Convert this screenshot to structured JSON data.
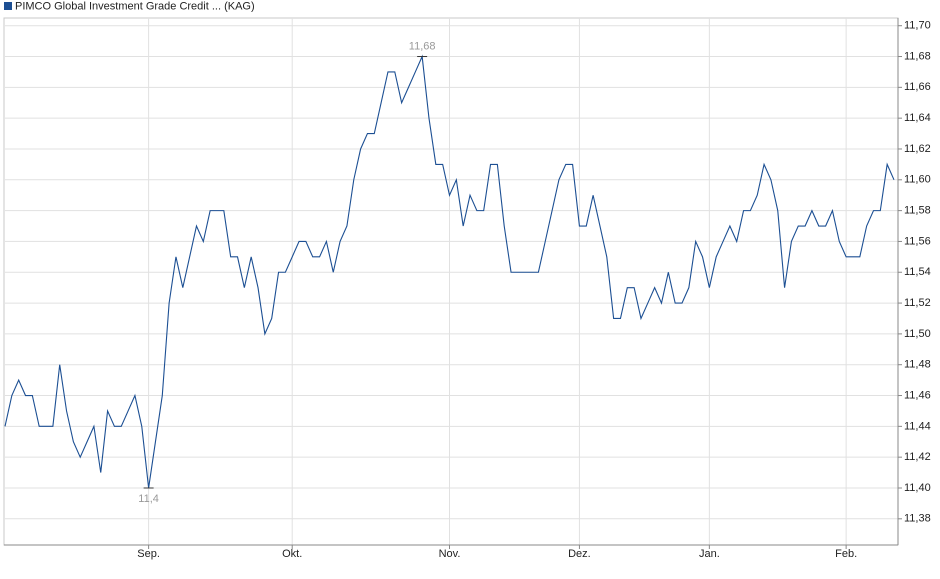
{
  "chart_data": {
    "type": "line",
    "series": [
      {
        "name": "PIMCO Global Investment Grade Credit ... (KAG)",
        "color": "#1c4f93",
        "values": [
          11.44,
          11.46,
          11.47,
          11.46,
          11.46,
          11.44,
          11.44,
          11.44,
          11.48,
          11.45,
          11.43,
          11.42,
          11.43,
          11.44,
          11.41,
          11.45,
          11.44,
          11.44,
          11.45,
          11.46,
          11.44,
          11.4,
          11.43,
          11.46,
          11.52,
          11.55,
          11.53,
          11.55,
          11.57,
          11.56,
          11.58,
          11.58,
          11.58,
          11.55,
          11.55,
          11.53,
          11.55,
          11.53,
          11.5,
          11.51,
          11.54,
          11.54,
          11.55,
          11.56,
          11.56,
          11.55,
          11.55,
          11.56,
          11.54,
          11.56,
          11.57,
          11.6,
          11.62,
          11.63,
          11.63,
          11.65,
          11.67,
          11.67,
          11.65,
          11.66,
          11.67,
          11.68,
          11.64,
          11.61,
          11.61,
          11.59,
          11.6,
          11.57,
          11.59,
          11.58,
          11.58,
          11.61,
          11.61,
          11.57,
          11.54,
          11.54,
          11.54,
          11.54,
          11.54,
          11.56,
          11.58,
          11.6,
          11.61,
          11.61,
          11.57,
          11.57,
          11.59,
          11.57,
          11.55,
          11.51,
          11.51,
          11.53,
          11.53,
          11.51,
          11.52,
          11.53,
          11.52,
          11.54,
          11.52,
          11.52,
          11.53,
          11.56,
          11.55,
          11.53,
          11.55,
          11.56,
          11.57,
          11.56,
          11.58,
          11.58,
          11.59,
          11.61,
          11.6,
          11.58,
          11.53,
          11.56,
          11.57,
          11.57,
          11.58,
          11.57,
          11.57,
          11.58,
          11.56,
          11.55,
          11.55,
          11.55,
          11.57,
          11.58,
          11.58,
          11.61,
          11.6
        ],
        "value_labels": [
          null,
          null,
          null,
          null,
          null,
          null,
          null,
          null,
          null,
          null,
          null,
          null,
          null,
          null,
          null,
          null,
          null,
          null,
          null,
          null,
          null,
          "11,4",
          null,
          null,
          null,
          null,
          null,
          null,
          null,
          null,
          null,
          null,
          null,
          null,
          null,
          null,
          null,
          null,
          null,
          null,
          null,
          null,
          null,
          null,
          null,
          null,
          null,
          null,
          null,
          null,
          null,
          null,
          null,
          null,
          null,
          null,
          null,
          null,
          null,
          null,
          null,
          "11,68",
          null,
          null,
          null,
          null,
          null,
          null,
          null,
          null,
          null,
          null,
          null,
          null,
          null,
          null,
          null,
          null,
          null,
          null,
          null,
          null,
          null,
          null,
          null,
          null,
          null,
          null,
          null,
          null,
          null,
          null,
          null,
          null,
          null,
          null,
          null,
          null,
          null,
          null,
          null,
          null,
          null,
          null,
          null,
          null,
          null,
          null,
          null,
          null,
          null,
          null,
          null,
          null,
          null,
          null,
          null,
          null,
          null,
          null,
          null,
          null,
          null,
          null,
          null,
          null,
          null,
          null,
          null,
          null,
          null
        ]
      }
    ],
    "xlim": [
      0,
      130
    ],
    "xticks": [
      {
        "value": 21,
        "label": "Sep."
      },
      {
        "value": 42,
        "label": "Okt."
      },
      {
        "value": 65,
        "label": "Nov."
      },
      {
        "value": 84,
        "label": "Dez."
      },
      {
        "value": 103,
        "label": "Jan."
      },
      {
        "value": 123,
        "label": "Feb."
      }
    ],
    "ylim": [
      11.363,
      11.705
    ],
    "yticks": [
      {
        "value": 11.38,
        "label": "11,38"
      },
      {
        "value": 11.4,
        "label": "11,40"
      },
      {
        "value": 11.42,
        "label": "11,42"
      },
      {
        "value": 11.44,
        "label": "11,44"
      },
      {
        "value": 11.46,
        "label": "11,46"
      },
      {
        "value": 11.48,
        "label": "11,48"
      },
      {
        "value": 11.5,
        "label": "11,50"
      },
      {
        "value": 11.52,
        "label": "11,52"
      },
      {
        "value": 11.54,
        "label": "11,54"
      },
      {
        "value": 11.56,
        "label": "11,56"
      },
      {
        "value": 11.58,
        "label": "11,58"
      },
      {
        "value": 11.6,
        "label": "11,60"
      },
      {
        "value": 11.62,
        "label": "11,62"
      },
      {
        "value": 11.64,
        "label": "11,64"
      },
      {
        "value": 11.66,
        "label": "11,66"
      },
      {
        "value": 11.68,
        "label": "11,68"
      },
      {
        "value": 11.7,
        "label": "11,70"
      }
    ],
    "grid": true
  }
}
